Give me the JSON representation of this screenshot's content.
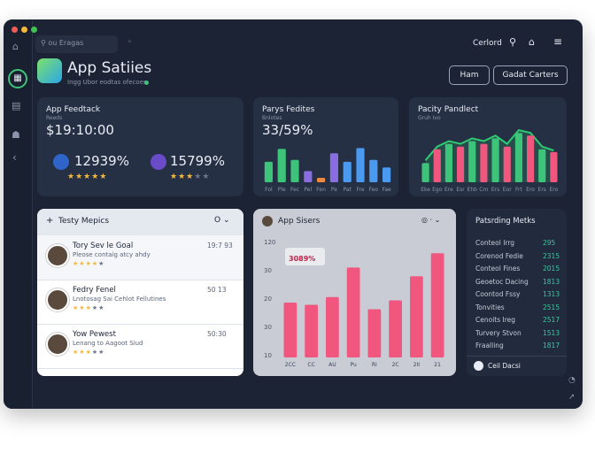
{
  "search": "ou Eragas",
  "user": "Cerlord",
  "header": {
    "title": "App Satiies",
    "subtitle": "Ingg Ubor eodtas ofecoes"
  },
  "buttons": [
    "Ham",
    "Gadat Carters"
  ],
  "feedback": {
    "title": "App Feedtack",
    "subtitle": "Reeds",
    "amount": "$19:10:00",
    "stats": [
      {
        "value": "12939%",
        "rating": 5
      },
      {
        "value": "15799%",
        "rating": 3
      }
    ]
  },
  "fields_chart": {
    "type": "bar",
    "title": "Parys Fedites",
    "subtitle": "Bnlotes",
    "headline": "33/59%",
    "categories": [
      "Fol",
      "Ple",
      "Fec",
      "Pel",
      "Fen",
      "Pe",
      "Pat",
      "Fre",
      "Feo",
      "Fae"
    ],
    "values": [
      55,
      90,
      60,
      30,
      12,
      78,
      55,
      92,
      60,
      40
    ],
    "colors": [
      "#3ec47a",
      "#3ec47a",
      "#3ec47a",
      "#8a6de0",
      "#f08a3c",
      "#8a6de0",
      "#4a9bf0",
      "#4a9bf0",
      "#4a9bf0",
      "#4a9bf0"
    ],
    "ylim": [
      0,
      100
    ]
  },
  "productivity_chart": {
    "type": "bar",
    "title": "Pacity Pandlect",
    "subtitle": "Gruh Ivo",
    "categories": [
      "Eke",
      "Ego",
      "Ere",
      "Esr",
      "Ehb",
      "Crn",
      "Ers",
      "Eor",
      "Frt",
      "Ero",
      "Ers",
      "Ero"
    ],
    "values": [
      35,
      60,
      70,
      65,
      75,
      70,
      80,
      65,
      90,
      85,
      60,
      55
    ],
    "colors": [
      "#3ec47a",
      "#f0567e",
      "#3ec47a",
      "#f0567e",
      "#3ec47a",
      "#f0567e",
      "#3ec47a",
      "#f0567e",
      "#3ec47a",
      "#f0567e",
      "#3ec47a",
      "#f0567e"
    ],
    "line": [
      40,
      65,
      75,
      70,
      80,
      75,
      85,
      70,
      95,
      90,
      65,
      58
    ],
    "line_color": "#2ecc71",
    "ylim": [
      0,
      100
    ]
  },
  "topics": {
    "title": "Testy Mepics",
    "filter": "O",
    "items": [
      {
        "name": "Tory Sev le Goal",
        "time": "19:7 93",
        "text": "Pleose contaig atcy ahdy",
        "rating": 4
      },
      {
        "name": "Fedry Fenel",
        "time": "50 13",
        "text": "Lnotosag Sai Cehlot Fellutines",
        "rating": 3
      },
      {
        "name": "Yow Pewest",
        "time": "50:30",
        "text": "Lenang to Aagoot Siud",
        "rating": 3
      }
    ]
  },
  "sales_chart": {
    "type": "bar",
    "title": "App Sisers",
    "badge": "3089%",
    "y_axis_labels": [
      "120",
      "30",
      "20",
      "30",
      "10"
    ],
    "categories": [
      "2CC",
      "CC",
      "AU",
      "Pu",
      "RI",
      "2C",
      "2II",
      "21"
    ],
    "values": [
      50,
      48,
      55,
      82,
      44,
      52,
      74,
      95
    ],
    "color": "#f0567e",
    "ylim": [
      0,
      100
    ]
  },
  "metrics": {
    "title": "Patsrding Metks",
    "rows": [
      [
        "Conteol Irrg",
        "295"
      ],
      [
        "Corenod Fedie",
        "2315"
      ],
      [
        "Conteol Fines",
        "2015"
      ],
      [
        "Geoetoc Dacing",
        "1813"
      ],
      [
        "Coontod Fssy",
        "1313"
      ],
      [
        "Tonvities",
        "2515"
      ],
      [
        "Cenoits Ireg",
        "2517"
      ],
      [
        "Turvery Stvon",
        "1513"
      ],
      [
        "Fraalling",
        "1817"
      ]
    ],
    "footer": "Ceil Dacsi"
  }
}
